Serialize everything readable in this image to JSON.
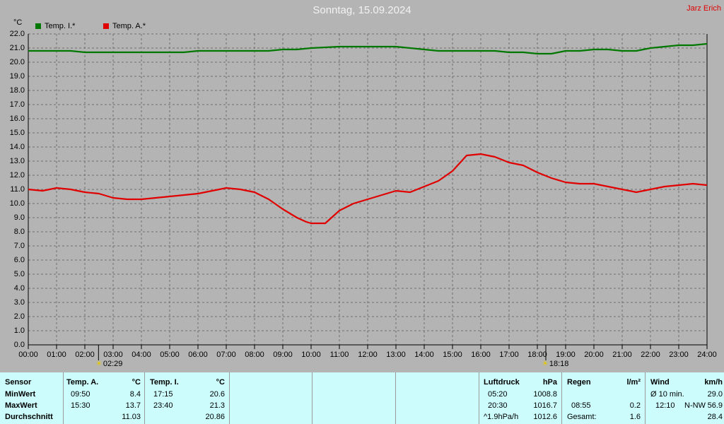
{
  "header": {
    "title": "Sonntag, 15.09.2024",
    "author": "Jarz Erich",
    "unit": "°C"
  },
  "legend": [
    {
      "label": "Temp. I.*",
      "color": "#007800"
    },
    {
      "label": "Temp. A.*",
      "color": "#e00000"
    }
  ],
  "chart_data": {
    "type": "line",
    "title": "Sonntag, 15.09.2024",
    "ylabel": "°C",
    "ylim": [
      0,
      22
    ],
    "xlim": [
      0,
      24
    ],
    "grid": true,
    "legend_position": "top-left",
    "y_ticks": [
      "0.0",
      "1.0",
      "2.0",
      "3.0",
      "4.0",
      "5.0",
      "6.0",
      "7.0",
      "8.0",
      "9.0",
      "10.0",
      "11.0",
      "12.0",
      "13.0",
      "14.0",
      "15.0",
      "16.0",
      "17.0",
      "18.0",
      "19.0",
      "20.0",
      "21.0",
      "22.0"
    ],
    "x_ticks": [
      "00:00",
      "01:00",
      "02:00",
      "03:00",
      "04:00",
      "05:00",
      "06:00",
      "07:00",
      "08:00",
      "09:00",
      "10:00",
      "11:00",
      "12:00",
      "13:00",
      "14:00",
      "15:00",
      "16:00",
      "17:00",
      "18:00",
      "19:00",
      "20:00",
      "21:00",
      "22:00",
      "23:00",
      "24:00"
    ],
    "series": [
      {
        "name": "Temp. I.*",
        "color": "#007800",
        "x": [
          0,
          0.5,
          1,
          1.5,
          2,
          2.5,
          3,
          4,
          5,
          5.5,
          6,
          7,
          8,
          8.5,
          9,
          9.5,
          10,
          11,
          12,
          13,
          13.5,
          14,
          14.5,
          15,
          15.5,
          16,
          16.5,
          17,
          17.5,
          18,
          18.5,
          19,
          19.5,
          20,
          20.5,
          21,
          21.5,
          22,
          22.5,
          23,
          23.5,
          24
        ],
        "values": [
          20.8,
          20.8,
          20.8,
          20.8,
          20.7,
          20.7,
          20.7,
          20.7,
          20.7,
          20.7,
          20.8,
          20.8,
          20.8,
          20.8,
          20.9,
          20.9,
          21.0,
          21.1,
          21.1,
          21.1,
          21.0,
          20.9,
          20.8,
          20.8,
          20.8,
          20.8,
          20.8,
          20.7,
          20.7,
          20.6,
          20.6,
          20.8,
          20.8,
          20.9,
          20.9,
          20.8,
          20.8,
          21.0,
          21.1,
          21.2,
          21.2,
          21.3
        ]
      },
      {
        "name": "Temp. A.*",
        "color": "#e00000",
        "x": [
          0,
          0.5,
          1,
          1.5,
          2,
          2.5,
          3,
          3.5,
          4,
          4.5,
          5,
          5.5,
          6,
          6.5,
          7,
          7.5,
          8,
          8.5,
          9,
          9.5,
          9.83,
          10,
          10.5,
          11,
          11.5,
          12,
          12.5,
          13,
          13.5,
          14,
          14.5,
          15,
          15.5,
          16,
          16.5,
          17,
          17.5,
          18,
          18.5,
          19,
          19.5,
          20,
          20.5,
          21,
          21.5,
          22,
          22.5,
          23,
          23.5,
          24
        ],
        "values": [
          11.0,
          10.9,
          11.1,
          11.0,
          10.8,
          10.7,
          10.4,
          10.3,
          10.3,
          10.4,
          10.5,
          10.6,
          10.7,
          10.9,
          11.1,
          11.0,
          10.8,
          10.3,
          9.6,
          9.0,
          8.7,
          8.6,
          8.6,
          9.5,
          10.0,
          10.3,
          10.6,
          10.9,
          10.8,
          11.2,
          11.6,
          12.3,
          13.4,
          13.5,
          13.3,
          12.9,
          12.7,
          12.2,
          11.8,
          11.5,
          11.4,
          11.4,
          11.2,
          11.0,
          10.8,
          11.0,
          11.2,
          11.3,
          11.4,
          11.3
        ]
      }
    ]
  },
  "markers": {
    "sunrise": "02:29",
    "sunset": "18:18"
  },
  "stats": {
    "sensor": {
      "label": "Sensor",
      "min": "MinWert",
      "max": "MaxWert",
      "avg": "Durchschnitt"
    },
    "temp_a": {
      "label": "Temp. A.",
      "unit": "°C",
      "min_time": "09:50",
      "min_val": "8.4",
      "max_time": "15:30",
      "max_val": "13.7",
      "avg_val": "11.03"
    },
    "temp_i": {
      "label": "Temp. I.",
      "unit": "°C",
      "min_time": "17:15",
      "min_val": "20.6",
      "max_time": "23:40",
      "max_val": "21.3",
      "avg_val": "20.86"
    },
    "luftdruck": {
      "label": "Luftdruck",
      "unit": "hPa",
      "min_time": "05:20",
      "min_val": "1008.8",
      "max_time": "20:30",
      "max_val": "1016.7",
      "trend": "^1.9hPa/h",
      "avg_val": "1012.6"
    },
    "regen": {
      "label": "Regen",
      "unit": "l/m²",
      "max_time": "08:55",
      "max_val": "0.2",
      "total_label": "Gesamt:",
      "total_val": "1.6"
    },
    "wind": {
      "label": "Wind",
      "unit": "km/h",
      "avg_label": "Ø 10 min.",
      "avg_val": "29.0",
      "max_time": "12:10",
      "max_dir": "N-NW",
      "max_val": "56.9",
      "day_avg": "28.4"
    }
  }
}
